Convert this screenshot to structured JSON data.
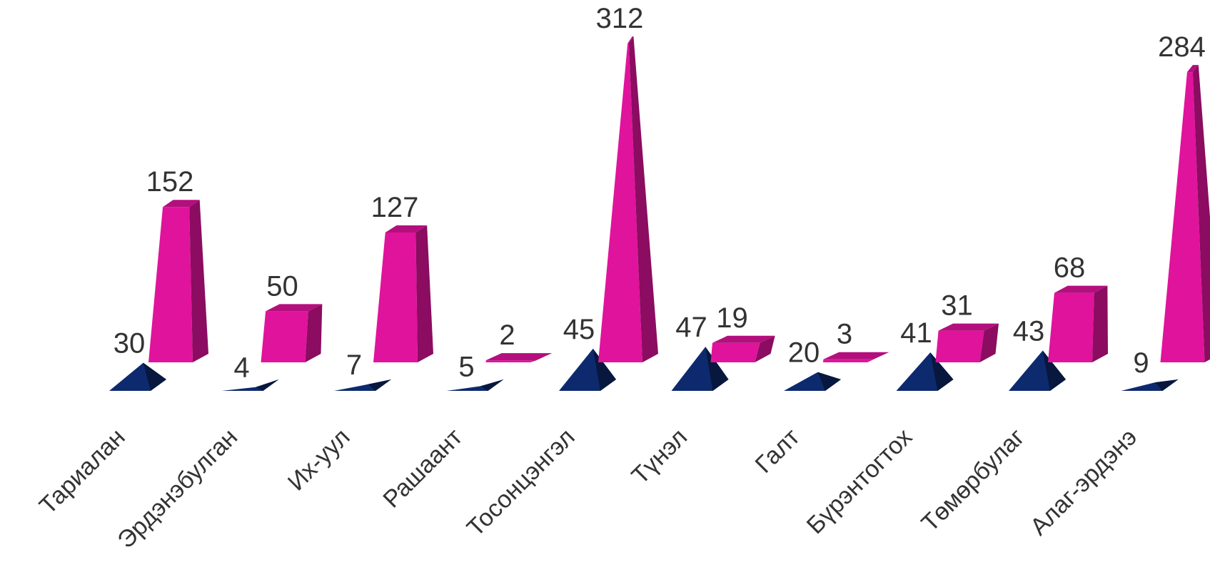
{
  "colors": {
    "series_1": "#0d2a6e",
    "series_2": "#e0139c"
  },
  "chart_data": {
    "type": "bar",
    "style": "3d-pyramid",
    "title": "",
    "xlabel": "",
    "ylabel": "",
    "grid": false,
    "legend": "none",
    "categories": [
      "Тариалан",
      "Эрдэнэбулган",
      "Их-уул",
      "Рашаант",
      "Тосонцэнгэл",
      "Түнэл",
      "Галт",
      "Бүрэнтогтох",
      "Төмөрбулаг",
      "Алаг-эрдэнэ"
    ],
    "series": [
      {
        "values": [
          30,
          4,
          7,
          5,
          45,
          47,
          20,
          41,
          43,
          9
        ]
      },
      {
        "values": [
          152,
          50,
          127,
          2,
          312,
          19,
          3,
          31,
          68,
          284
        ]
      }
    ],
    "ylim": [
      0,
      312
    ]
  }
}
